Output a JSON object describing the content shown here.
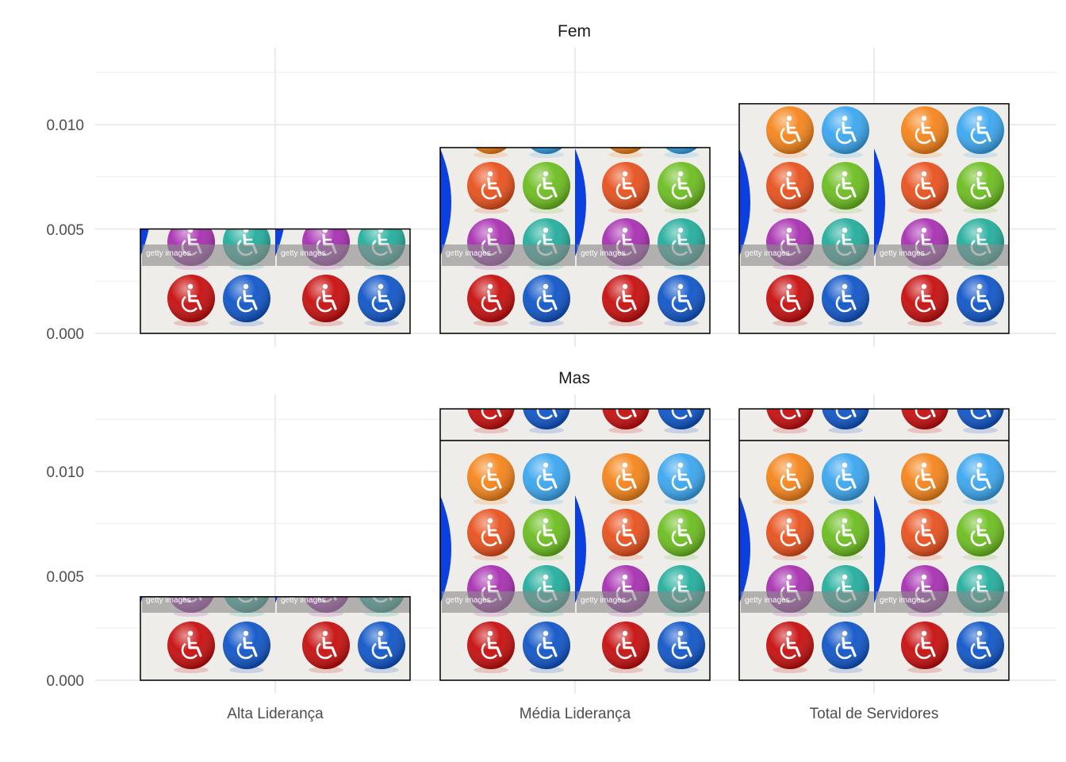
{
  "chart_data": {
    "type": "bar",
    "facet": "rows",
    "categories": [
      "Alta Liderança",
      "Média Liderança",
      "Total de Servidores"
    ],
    "y_ticks": [
      "0.000",
      "0.005",
      "0.010"
    ],
    "ylim": [
      0,
      0.0125
    ],
    "grid": true,
    "bar_fill": "tiled image: wheelchair accessibility icons on colored circles",
    "watermark": "getty images",
    "panels": [
      {
        "title": "Fem",
        "values": [
          0.005,
          0.0089,
          0.011
        ]
      },
      {
        "title": "Mas",
        "values": [
          0.004,
          0.013,
          0.013
        ]
      }
    ]
  },
  "colors": {
    "grid": "#ebebeb",
    "bar_border": "#000000",
    "tile_bg": "#efedea",
    "icon_colors": [
      "#f5841a",
      "#3aa6ef",
      "#e8501c",
      "#6cbd1f",
      "#a72fb0",
      "#22ad9c",
      "#c70d0d",
      "#0f55c8"
    ]
  }
}
